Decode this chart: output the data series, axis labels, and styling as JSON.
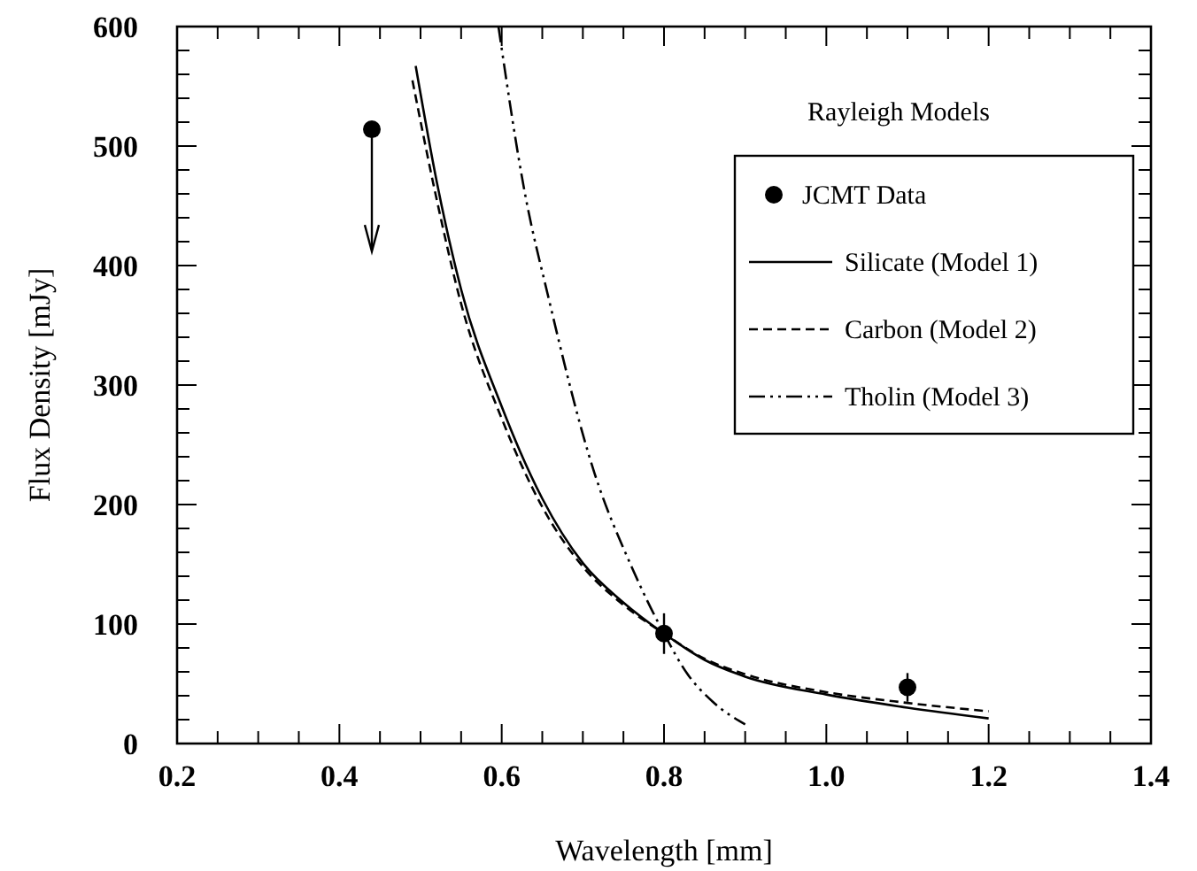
{
  "chart_data": {
    "type": "line",
    "xlabel": "Wavelength [mm]",
    "ylabel": "Flux Density [mJy]",
    "legend_title": "Rayleigh Models",
    "legend": "top right",
    "grid": false,
    "xlim": [
      0.2,
      1.4
    ],
    "ylim": [
      0,
      600
    ],
    "xticks": [
      {
        "value": 0.2,
        "label": "0.2"
      },
      {
        "value": 0.25,
        "label": null
      },
      {
        "value": 0.3,
        "label": null
      },
      {
        "value": 0.35,
        "label": null
      },
      {
        "value": 0.4,
        "label": "0.4"
      },
      {
        "value": 0.45,
        "label": null
      },
      {
        "value": 0.5,
        "label": null
      },
      {
        "value": 0.55,
        "label": null
      },
      {
        "value": 0.6,
        "label": "0.6"
      },
      {
        "value": 0.65,
        "label": null
      },
      {
        "value": 0.7,
        "label": null
      },
      {
        "value": 0.75,
        "label": null
      },
      {
        "value": 0.8,
        "label": "0.8"
      },
      {
        "value": 0.85,
        "label": null
      },
      {
        "value": 0.9,
        "label": null
      },
      {
        "value": 0.95,
        "label": null
      },
      {
        "value": 1.0,
        "label": "1.0"
      },
      {
        "value": 1.05,
        "label": null
      },
      {
        "value": 1.1,
        "label": null
      },
      {
        "value": 1.15,
        "label": null
      },
      {
        "value": 1.2,
        "label": "1.2"
      },
      {
        "value": 1.25,
        "label": null
      },
      {
        "value": 1.3,
        "label": null
      },
      {
        "value": 1.35,
        "label": null
      },
      {
        "value": 1.4,
        "label": "1.4"
      }
    ],
    "yticks": [
      0,
      {
        "value": 20,
        "label": null
      },
      {
        "value": 40,
        "label": null
      },
      {
        "value": 60,
        "label": null
      },
      {
        "value": 80,
        "label": null
      },
      100,
      {
        "value": 120,
        "label": null
      },
      {
        "value": 140,
        "label": null
      },
      {
        "value": 160,
        "label": null
      },
      {
        "value": 180,
        "label": null
      },
      200,
      {
        "value": 220,
        "label": null
      },
      {
        "value": 240,
        "label": null
      },
      {
        "value": 260,
        "label": null
      },
      {
        "value": 280,
        "label": null
      },
      300,
      {
        "value": 320,
        "label": null
      },
      {
        "value": 340,
        "label": null
      },
      {
        "value": 360,
        "label": null
      },
      {
        "value": 380,
        "label": null
      },
      400,
      {
        "value": 420,
        "label": null
      },
      {
        "value": 440,
        "label": null
      },
      {
        "value": 460,
        "label": null
      },
      {
        "value": 480,
        "label": null
      },
      500,
      {
        "value": 520,
        "label": null
      },
      {
        "value": 540,
        "label": null
      },
      {
        "value": 560,
        "label": null
      },
      {
        "value": 580,
        "label": null
      },
      600
    ],
    "series": [
      {
        "name": "JCMT Data",
        "type": "scatter",
        "marker": "circle",
        "color": "#000000",
        "x": [
          0.44,
          0.8,
          1.1
        ],
        "values": [
          514,
          92,
          47
        ],
        "errors": [
          null,
          17,
          12
        ]
      },
      {
        "name": "Silicate (Model 1)",
        "line_style": "solid",
        "color": "#000000",
        "x": [
          0.494,
          0.52,
          0.55,
          0.6,
          0.65,
          0.7,
          0.75,
          0.8,
          0.85,
          0.9,
          1.0,
          1.1,
          1.2
        ],
        "values": [
          567,
          470,
          380,
          282,
          205,
          151,
          118,
          92,
          70,
          56,
          41,
          30,
          21
        ]
      },
      {
        "name": "Carbon (Model 2)",
        "line_style": "dashed",
        "color": "#000000",
        "x": [
          0.49,
          0.52,
          0.55,
          0.6,
          0.65,
          0.7,
          0.75,
          0.8,
          0.85,
          0.9,
          1.0,
          1.1,
          1.2
        ],
        "values": [
          555,
          455,
          368,
          272,
          198,
          148,
          116,
          92,
          71,
          58,
          43,
          34,
          27
        ]
      },
      {
        "name": "Tholin (Model 3)",
        "line_style": "dashdot",
        "color": "#000000",
        "x": [
          0.596,
          0.629,
          0.657,
          0.714,
          0.76,
          0.8,
          0.828,
          0.86,
          0.9
        ],
        "values": [
          600,
          459,
          375,
          227,
          148,
          92,
          59,
          35,
          16
        ]
      }
    ]
  }
}
